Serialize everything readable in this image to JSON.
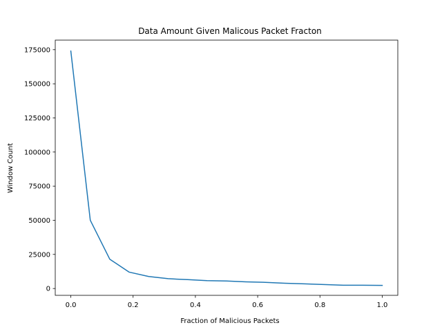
{
  "chart_data": {
    "type": "line",
    "title": "Data Amount Given Malicous Packet Fracton",
    "xlabel": "Fraction of Malicious Packets",
    "ylabel": "Window Count",
    "xlim": [
      -0.05,
      1.05
    ],
    "ylim": [
      -5000,
      182000
    ],
    "xticks": [
      0.0,
      0.2,
      0.4,
      0.6,
      0.8,
      1.0
    ],
    "xtick_labels": [
      "0.0",
      "0.2",
      "0.4",
      "0.6",
      "0.8",
      "1.0"
    ],
    "yticks": [
      0,
      25000,
      50000,
      75000,
      100000,
      125000,
      150000,
      175000
    ],
    "ytick_labels": [
      "0",
      "25000",
      "50000",
      "75000",
      "100000",
      "125000",
      "150000",
      "175000"
    ],
    "grid": false,
    "series": [
      {
        "color": "#1f77b4",
        "x": [
          0.0,
          0.0625,
          0.125,
          0.1875,
          0.25,
          0.3125,
          0.375,
          0.4375,
          0.5,
          0.5625,
          0.625,
          0.6875,
          0.75,
          0.8125,
          0.875,
          0.9375,
          1.0
        ],
        "y": [
          174000,
          50000,
          21500,
          12000,
          8800,
          7200,
          6500,
          5800,
          5500,
          4900,
          4500,
          3900,
          3400,
          2900,
          2400,
          2400,
          2300
        ]
      }
    ]
  }
}
